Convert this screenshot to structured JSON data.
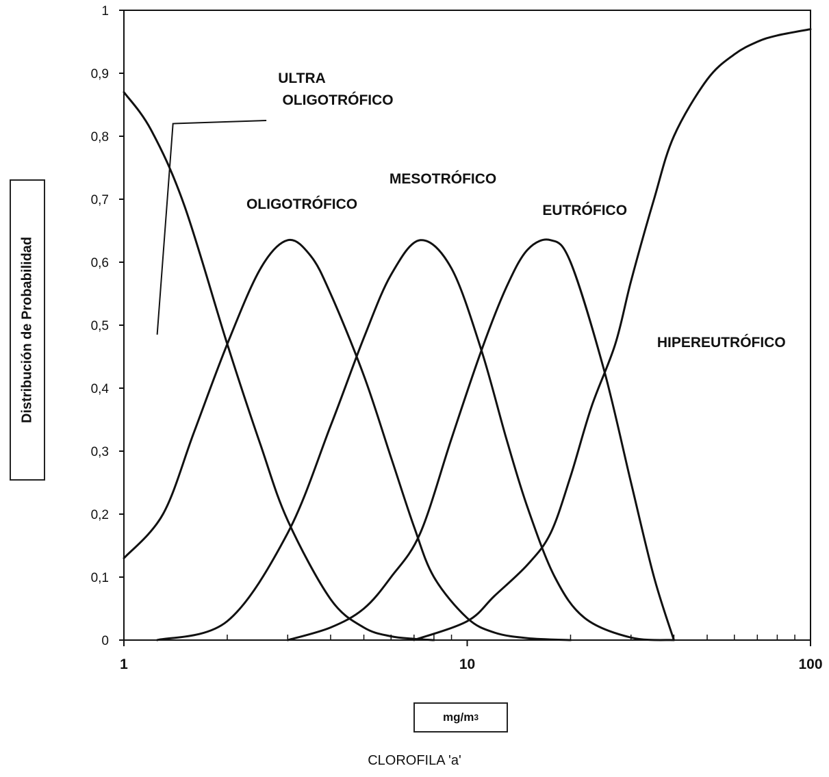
{
  "chart_data": {
    "type": "line",
    "xscale": "log",
    "xlim": [
      1,
      100
    ],
    "ylim": [
      0,
      1
    ],
    "xticks": [
      "1",
      "10",
      "100"
    ],
    "yticks": [
      "0",
      "0,1",
      "0,2",
      "0,3",
      "0,4",
      "0,5",
      "0,6",
      "0,7",
      "0,8",
      "0,9",
      "1"
    ],
    "ylabel": "Distribución de Probabilidad",
    "xunit": {
      "base": "mg/m",
      "sup": "3"
    },
    "xlabel": "CLOROFILA 'a'",
    "grid": false,
    "series": [
      {
        "name": "ULTRA OLIGOTRÓFICO",
        "x": [
          1,
          1.2,
          1.5,
          2,
          2.5,
          3,
          4,
          5,
          6,
          7,
          8
        ],
        "y": [
          0.87,
          0.81,
          0.69,
          0.47,
          0.31,
          0.19,
          0.065,
          0.02,
          0.006,
          0.002,
          0
        ]
      },
      {
        "name": "OLIGOTRÓFICO",
        "x": [
          1,
          1.3,
          1.6,
          2,
          2.5,
          3,
          3.5,
          4,
          5,
          6,
          7,
          8,
          10,
          12,
          15,
          20
        ],
        "y": [
          0.13,
          0.2,
          0.33,
          0.47,
          0.59,
          0.635,
          0.61,
          0.55,
          0.42,
          0.29,
          0.18,
          0.1,
          0.035,
          0.012,
          0.003,
          0
        ]
      },
      {
        "name": "MESOTRÓFICO",
        "x": [
          1.25,
          2,
          3,
          4,
          5,
          6,
          7.3,
          9,
          11,
          13,
          15,
          18,
          22,
          30,
          40
        ],
        "y": [
          0,
          0.03,
          0.17,
          0.34,
          0.48,
          0.58,
          0.635,
          0.59,
          0.46,
          0.32,
          0.21,
          0.1,
          0.035,
          0.004,
          0
        ]
      },
      {
        "name": "EUTRÓFICO",
        "x": [
          3,
          4,
          5,
          6,
          7.3,
          9,
          11,
          13,
          15,
          17.5,
          20,
          25,
          30,
          35,
          40
        ],
        "y": [
          0,
          0.02,
          0.05,
          0.1,
          0.17,
          0.32,
          0.46,
          0.56,
          0.62,
          0.635,
          0.6,
          0.43,
          0.25,
          0.1,
          0
        ]
      },
      {
        "name": "HIPEREUTRÓFICO",
        "x": [
          7,
          10,
          12,
          15,
          17.5,
          20,
          23,
          27,
          30,
          35,
          40,
          50,
          60,
          70,
          80,
          100
        ],
        "y": [
          0,
          0.03,
          0.07,
          0.12,
          0.17,
          0.26,
          0.37,
          0.47,
          0.57,
          0.7,
          0.8,
          0.89,
          0.93,
          0.95,
          0.96,
          0.97
        ]
      }
    ],
    "curve_labels": [
      {
        "text": "ULTRA",
        "x": 3.3,
        "y": 0.885
      },
      {
        "text": "OLIGOTRÓFICO",
        "x": 4.2,
        "y": 0.85
      },
      {
        "text": "OLIGOTRÓFICO",
        "x": 3.3,
        "y": 0.685
      },
      {
        "text": "MESOTRÓFICO",
        "x": 8.5,
        "y": 0.725
      },
      {
        "text": "EUTRÓFICO",
        "x": 22,
        "y": 0.675
      },
      {
        "text": "HIPEREUTRÓFICO",
        "x": 55,
        "y": 0.465
      }
    ],
    "annotation_line": [
      {
        "x": 1.25,
        "y": 0.485
      },
      {
        "x": 1.39,
        "y": 0.82
      },
      {
        "x": 2.6,
        "y": 0.825
      }
    ]
  }
}
